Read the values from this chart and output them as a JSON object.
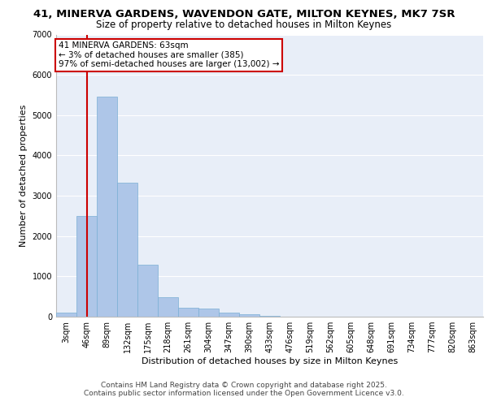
{
  "title_line1": "41, MINERVA GARDENS, WAVENDON GATE, MILTON KEYNES, MK7 7SR",
  "title_line2": "Size of property relative to detached houses in Milton Keynes",
  "xlabel": "Distribution of detached houses by size in Milton Keynes",
  "ylabel": "Number of detached properties",
  "categories": [
    "3sqm",
    "46sqm",
    "89sqm",
    "132sqm",
    "175sqm",
    "218sqm",
    "261sqm",
    "304sqm",
    "347sqm",
    "390sqm",
    "433sqm",
    "476sqm",
    "519sqm",
    "562sqm",
    "605sqm",
    "648sqm",
    "691sqm",
    "734sqm",
    "777sqm",
    "820sqm",
    "863sqm"
  ],
  "bar_values": [
    100,
    2500,
    5450,
    3330,
    1290,
    480,
    215,
    210,
    95,
    60,
    20,
    0,
    0,
    0,
    0,
    0,
    0,
    0,
    0,
    0,
    0
  ],
  "bar_color": "#aec6e8",
  "bar_edge_color": "#7aafd4",
  "background_color": "#e8eef8",
  "grid_color": "#ffffff",
  "vline_x": 1.0,
  "vline_color": "#cc0000",
  "annotation_title": "41 MINERVA GARDENS: 63sqm",
  "annotation_line1": "← 3% of detached houses are smaller (385)",
  "annotation_line2": "97% of semi-detached houses are larger (13,002) →",
  "annotation_box_color": "#cc0000",
  "annotation_bg": "#ffffff",
  "ylim": [
    0,
    7000
  ],
  "yticks": [
    0,
    1000,
    2000,
    3000,
    4000,
    5000,
    6000,
    7000
  ],
  "footer_line1": "Contains HM Land Registry data © Crown copyright and database right 2025.",
  "footer_line2": "Contains public sector information licensed under the Open Government Licence v3.0.",
  "title_fontsize": 9.5,
  "subtitle_fontsize": 8.5,
  "axis_label_fontsize": 8,
  "tick_fontsize": 7,
  "annotation_fontsize": 7.5,
  "footer_fontsize": 6.5
}
